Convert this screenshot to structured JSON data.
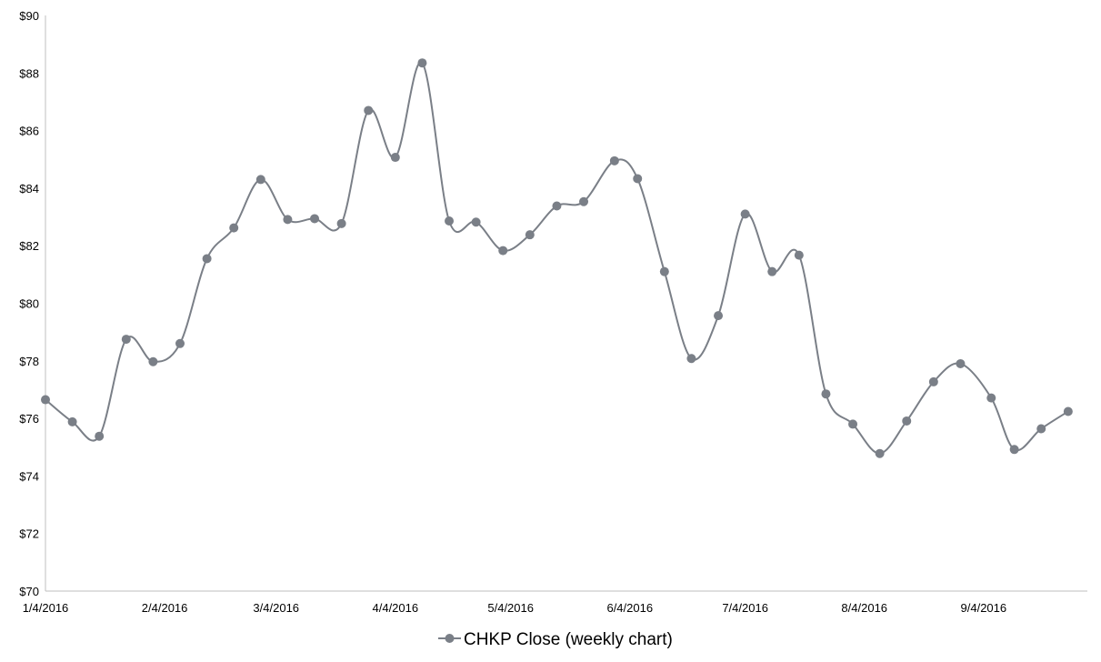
{
  "chart_data": {
    "type": "line",
    "x": [
      "1/4/2016",
      "1/11/2016",
      "1/18/2016",
      "1/25/2016",
      "2/1/2016",
      "2/8/2016",
      "2/15/2016",
      "2/22/2016",
      "2/29/2016",
      "3/7/2016",
      "3/14/2016",
      "3/21/2016",
      "3/28/2016",
      "4/4/2016",
      "4/11/2016",
      "4/18/2016",
      "4/25/2016",
      "5/2/2016",
      "5/9/2016",
      "5/16/2016",
      "5/23/2016",
      "5/31/2016",
      "6/6/2016",
      "6/13/2016",
      "6/20/2016",
      "6/27/2016",
      "7/4/2016",
      "7/11/2016",
      "7/18/2016",
      "7/25/2016",
      "8/1/2016",
      "8/8/2016",
      "8/15/2016",
      "8/22/2016",
      "8/29/2016",
      "9/6/2016",
      "9/12/2016",
      "9/19/2016",
      "9/26/2016"
    ],
    "series": [
      {
        "name": "CHKP Close (weekly chart)",
        "values": [
          76.65,
          75.88,
          75.38,
          78.75,
          77.97,
          78.6,
          81.55,
          82.62,
          84.3,
          82.91,
          82.94,
          82.77,
          86.7,
          85.07,
          88.35,
          82.86,
          82.82,
          81.83,
          82.38,
          83.38,
          83.53,
          84.95,
          84.33,
          81.1,
          78.08,
          79.57,
          83.1,
          81.1,
          81.67,
          76.85,
          75.8,
          74.78,
          75.91,
          77.27,
          77.9,
          76.71,
          74.92,
          75.64,
          76.24
        ]
      }
    ],
    "title": "",
    "xlabel": "",
    "ylabel": "",
    "ylim": [
      70,
      90
    ],
    "ytick_step": 2,
    "y_tick_labels": [
      "$70",
      "$72",
      "$74",
      "$76",
      "$78",
      "$80",
      "$82",
      "$84",
      "$86",
      "$88",
      "$90"
    ],
    "x_tick_labels": [
      "1/4/2016",
      "2/4/2016",
      "3/4/2016",
      "4/4/2016",
      "5/4/2016",
      "6/4/2016",
      "7/4/2016",
      "8/4/2016",
      "9/4/2016"
    ],
    "x_tick_dates": [
      "1/4/2016",
      "2/4/2016",
      "3/4/2016",
      "4/4/2016",
      "5/4/2016",
      "6/4/2016",
      "7/4/2016",
      "8/4/2016",
      "9/4/2016"
    ],
    "x_range": [
      "1/4/2016",
      "10/1/2016"
    ],
    "grid": false,
    "legend_position": "bottom",
    "line_color": "#7a7f87",
    "marker_color": "#7a7f87",
    "axis_color": "#bfbfbf"
  }
}
